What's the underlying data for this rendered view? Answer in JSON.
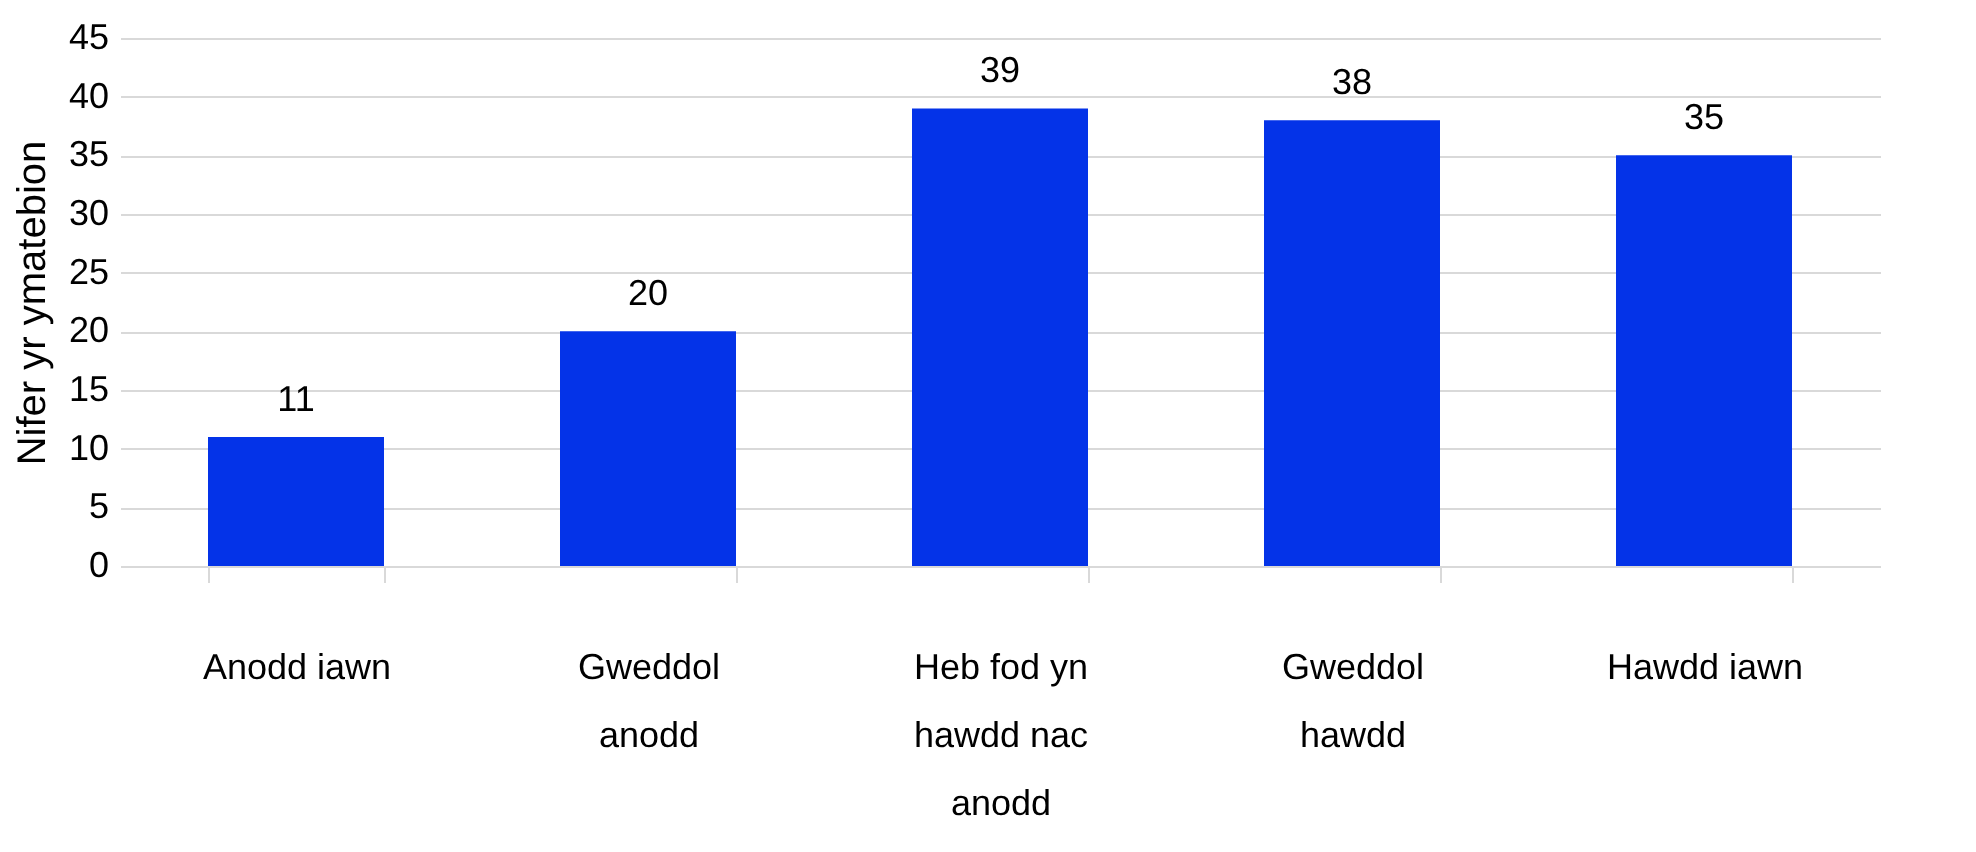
{
  "chart_data": {
    "type": "bar",
    "ylabel": "Nifer yr ymatebion",
    "categories": [
      "Anodd iawn",
      "Gweddol anodd",
      "Heb fod yn hawdd nac anodd",
      "Gweddol hawdd",
      "Hawdd iawn"
    ],
    "values": [
      11,
      20,
      39,
      38,
      35
    ],
    "color": "#0433e8",
    "ylim": [
      0,
      45
    ],
    "yticks": [
      0,
      5,
      10,
      15,
      20,
      25,
      30,
      35,
      40,
      45
    ],
    "grid": "y",
    "data_labels": true
  }
}
